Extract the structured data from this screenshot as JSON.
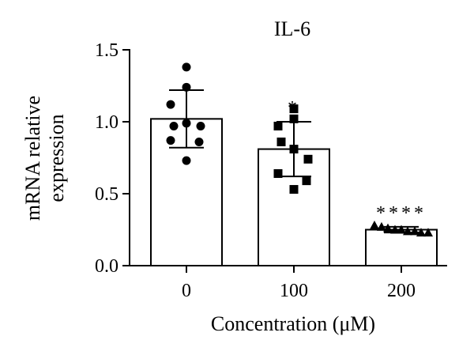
{
  "chart_data": {
    "type": "bar",
    "title": "IL-6",
    "xlabel": "Concentration (μM)",
    "ylabel_lines": [
      "mRNA relative",
      "expression"
    ],
    "ylim": [
      0,
      1.5
    ],
    "yticks": [
      "0.0",
      "0.5",
      "1.0",
      "1.5"
    ],
    "categories": [
      "0",
      "100",
      "200"
    ],
    "values": [
      1.02,
      0.81,
      0.25
    ],
    "sd": [
      0.2,
      0.19,
      0.02
    ],
    "significance": [
      "",
      "*",
      "****"
    ],
    "markers": [
      "circle",
      "square",
      "triangle"
    ],
    "points": [
      [
        1.38,
        1.24,
        1.12,
        0.97,
        0.99,
        0.97,
        0.87,
        0.86,
        0.73
      ],
      [
        1.09,
        1.02,
        0.97,
        0.86,
        0.81,
        0.74,
        0.64,
        0.59,
        0.53
      ],
      [
        0.28,
        0.27,
        0.26,
        0.25,
        0.25,
        0.24,
        0.24,
        0.23,
        0.23
      ]
    ]
  }
}
